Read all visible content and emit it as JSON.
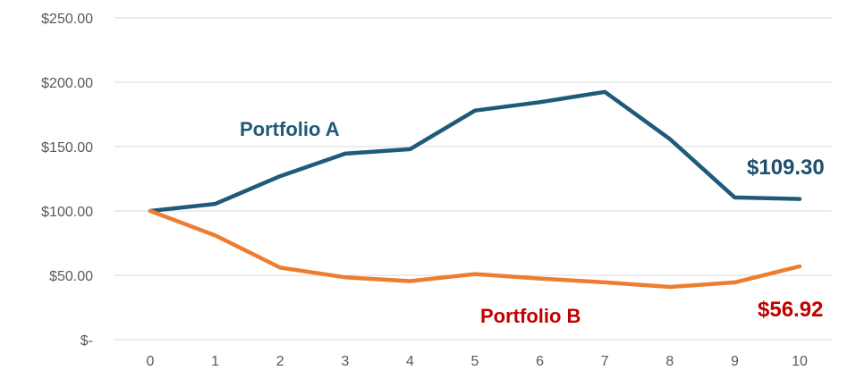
{
  "chart_data": {
    "type": "line",
    "title": "",
    "xlabel": "",
    "ylabel": "",
    "x": [
      0,
      1,
      2,
      3,
      4,
      5,
      6,
      7,
      8,
      9,
      10
    ],
    "ylim": [
      0,
      250
    ],
    "y_ticks": [
      {
        "value": 0,
        "label": "$-"
      },
      {
        "value": 50,
        "label": "$50.00"
      },
      {
        "value": 100,
        "label": "$100.00"
      },
      {
        "value": 150,
        "label": "$150.00"
      },
      {
        "value": 200,
        "label": "$200.00"
      },
      {
        "value": 250,
        "label": "$250.00"
      }
    ],
    "x_tick_labels": [
      "0",
      "1",
      "2",
      "3",
      "4",
      "5",
      "6",
      "7",
      "8",
      "9",
      "10"
    ],
    "grid": "horizontal",
    "legend": "none",
    "series": [
      {
        "name": "Portfolio A",
        "color": "#1f5a7a",
        "values": [
          100,
          105.5,
          127,
          144.5,
          148,
          178,
          184.5,
          192.5,
          156,
          110.5,
          109.3
        ],
        "end_label": "$109.30",
        "end_label_color": "#1f4e6e"
      },
      {
        "name": "Portfolio B",
        "color": "#ed7d31",
        "values": [
          100,
          81,
          56,
          48.5,
          45.5,
          51,
          47.5,
          44.5,
          41,
          44.5,
          56.92
        ],
        "end_label": "$56.92",
        "end_label_color": "#c00000"
      }
    ]
  }
}
